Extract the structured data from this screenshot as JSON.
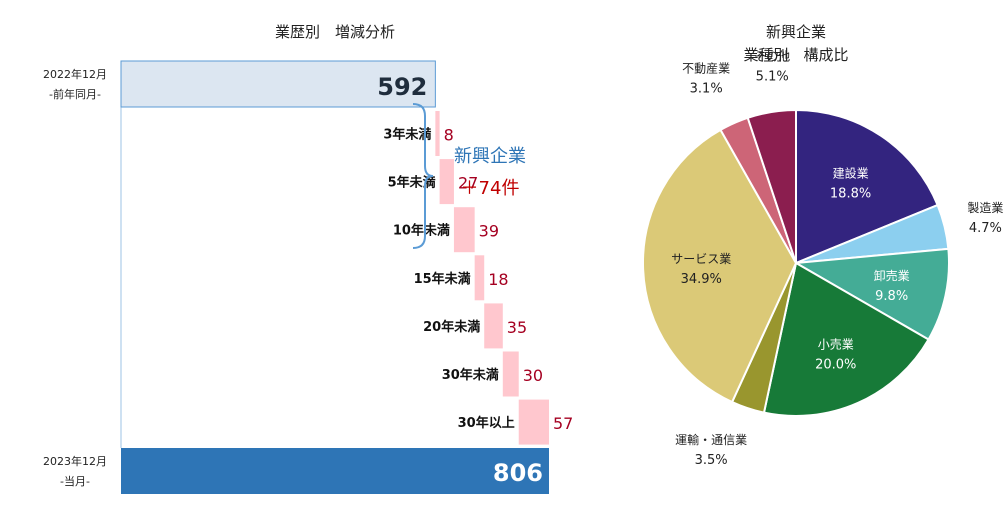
{
  "chart_data": [
    {
      "type": "bar",
      "subtype": "waterfall",
      "title": "業歴別　増減分析",
      "start": {
        "label_line1": "2022年12月",
        "label_line2": "-前年同月-",
        "value": 592,
        "color": "#dce6f1"
      },
      "end": {
        "label_line1": "2023年12月",
        "label_line2": "-当月-",
        "value": 806,
        "color": "#2e75b6"
      },
      "categories": [
        "3年未満",
        "5年未満",
        "10年未満",
        "15年未満",
        "20年未満",
        "30年未満",
        "30年以上"
      ],
      "values": [
        8,
        27,
        39,
        18,
        35,
        30,
        57
      ],
      "increment_color": "#ffc7ce",
      "increment_label_color": "#a50021",
      "annotation": {
        "line1": "新興企業",
        "line2": "＋74件",
        "color_line1": "#2e75b6",
        "color_line2": "#c00000"
      }
    },
    {
      "type": "pie",
      "title_line1": "新興企業",
      "title_line2": "業種別　構成比",
      "slices": [
        {
          "label": "建設業",
          "value": 18.8,
          "display": "18.8%",
          "color": "#33247f",
          "label_inside": true
        },
        {
          "label": "製造業",
          "value": 4.7,
          "display": "4.7%",
          "color": "#8ccfef",
          "label_inside": false
        },
        {
          "label": "卸売業",
          "value": 9.8,
          "display": "9.8%",
          "color": "#44ac96",
          "label_inside": true
        },
        {
          "label": "小売業",
          "value": 20.0,
          "display": "20.0%",
          "color": "#177a38",
          "label_inside": true
        },
        {
          "label": "運輸・通信業",
          "value": 3.5,
          "display": "3.5%",
          "color": "#99962e",
          "label_inside": false
        },
        {
          "label": "サービス業",
          "value": 34.9,
          "display": "34.9%",
          "color": "#dbc977",
          "label_inside": true
        },
        {
          "label": "不動産業",
          "value": 3.1,
          "display": "3.1%",
          "color": "#cd6577",
          "label_inside": false
        },
        {
          "label": "その他",
          "value": 5.1,
          "display": "5.1%",
          "color": "#8b1e4f",
          "label_inside": false
        }
      ]
    }
  ]
}
